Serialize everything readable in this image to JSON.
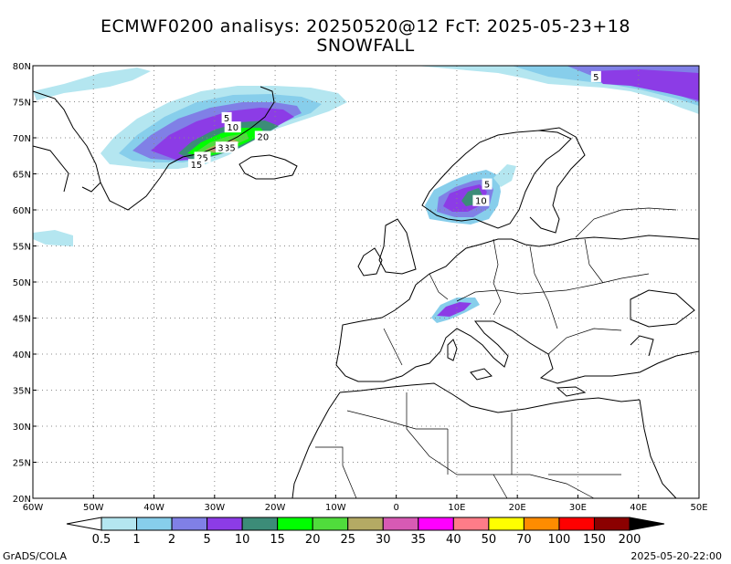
{
  "title": {
    "line1": "ECMWF0200 analisys: 20250520@12 FcT: 2025-05-23+18",
    "line2": "SNOWFALL"
  },
  "map": {
    "lat_labels": [
      "80N",
      "75N",
      "70N",
      "65N",
      "60N",
      "55N",
      "50N",
      "45N",
      "40N",
      "35N",
      "30N",
      "25N",
      "20N"
    ],
    "lat_values": [
      80,
      75,
      70,
      65,
      60,
      55,
      50,
      45,
      40,
      35,
      30,
      25,
      20
    ],
    "lon_labels": [
      "60W",
      "50W",
      "40W",
      "30W",
      "20W",
      "10W",
      "0",
      "10E",
      "20E",
      "30E",
      "40E",
      "50E"
    ],
    "lon_values": [
      -60,
      -50,
      -40,
      -30,
      -20,
      -10,
      0,
      10,
      20,
      30,
      40,
      50
    ],
    "extent": {
      "lon_min": -60,
      "lon_max": 50,
      "lat_min": 20,
      "lat_max": 80
    },
    "grid": "dotted",
    "contour_labels": [
      {
        "text": "5",
        "lon": 33,
        "lat": 78.5
      },
      {
        "text": "5",
        "lon": -28,
        "lat": 72.8
      },
      {
        "text": "10",
        "lon": -27,
        "lat": 71.5
      },
      {
        "text": "20",
        "lon": -22,
        "lat": 70.2
      },
      {
        "text": "35",
        "lon": -27.5,
        "lat": 68.7
      },
      {
        "text": "3",
        "lon": -29,
        "lat": 68.7
      },
      {
        "text": "25",
        "lon": -32,
        "lat": 67.3
      },
      {
        "text": "15",
        "lon": -33,
        "lat": 66.3
      },
      {
        "text": "5",
        "lon": 15,
        "lat": 63.6
      },
      {
        "text": "10",
        "lon": 14,
        "lat": 61.3
      }
    ]
  },
  "colorbar": {
    "labels": [
      "0.5",
      "1",
      "2",
      "5",
      "10",
      "15",
      "20",
      "25",
      "30",
      "35",
      "40",
      "50",
      "70",
      "100",
      "150",
      "200"
    ],
    "colors": [
      "#b4e6f0",
      "#87ceeb",
      "#8080e6",
      "#8c3ce6",
      "#3c8c78",
      "#00ff00",
      "#50dc3c",
      "#b4aa64",
      "#d75ab4",
      "#ff00ff",
      "#ff7c88",
      "#ffff00",
      "#ff8c00",
      "#ff0000",
      "#8b0000"
    ]
  },
  "footer": {
    "credit": "GrADS/COLA",
    "timestamp": "2025-05-20-22:00"
  }
}
